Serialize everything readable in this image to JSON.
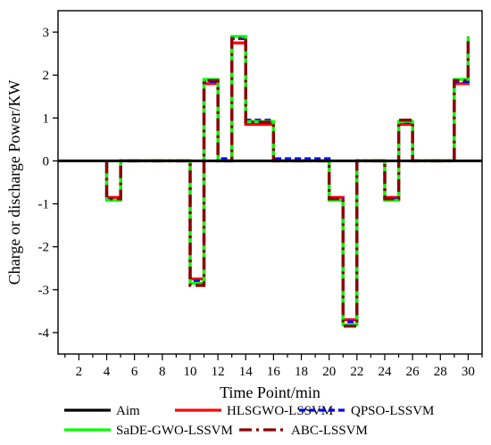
{
  "chart_data": {
    "type": "line",
    "xlabel": "Time Point/min",
    "ylabel": "Charge or discharge Power/KW",
    "xlim": [
      0.5,
      31
    ],
    "ylim": [
      -4.5,
      3.5
    ],
    "xticks": [
      2,
      4,
      6,
      8,
      10,
      12,
      14,
      16,
      18,
      20,
      22,
      24,
      26,
      28,
      30
    ],
    "yticks": [
      -4,
      -3,
      -2,
      -1,
      0,
      1,
      2,
      3
    ],
    "grid": false,
    "legend_position": "bottom",
    "series": [
      {
        "name": "Aim",
        "color": "#000000",
        "style": "solid",
        "x": [
          0.5,
          31
        ],
        "y": [
          0,
          0
        ]
      },
      {
        "name": "HLSGWO-LSSVM",
        "color": "#ff0000",
        "style": "solid",
        "x": [
          4,
          4,
          5,
          5,
          10,
          10,
          11,
          11,
          12,
          12,
          13,
          13,
          14,
          14,
          16,
          16,
          20,
          20,
          21,
          21,
          22,
          22,
          24,
          24,
          25,
          25,
          26,
          26,
          29,
          29,
          30,
          30
        ],
        "y": [
          0,
          -0.85,
          -0.85,
          0,
          0,
          -2.75,
          -2.75,
          1.8,
          1.8,
          0,
          0,
          2.75,
          2.75,
          0.85,
          0.85,
          0,
          0,
          -0.85,
          -0.85,
          -3.7,
          -3.7,
          0,
          0,
          -0.85,
          -0.85,
          0.85,
          0.85,
          0,
          0,
          1.8,
          1.8,
          2.75
        ]
      },
      {
        "name": "QPSO-LSSVM",
        "color": "#0000ff",
        "style": "dash",
        "x": [
          4,
          4,
          5,
          5,
          10,
          10,
          11,
          11,
          12,
          12,
          13,
          13,
          14,
          14,
          16,
          16,
          20,
          20,
          21,
          21,
          22,
          22,
          24,
          24,
          25,
          25,
          26,
          26,
          29,
          29,
          30,
          30
        ],
        "y": [
          0,
          -0.9,
          -0.9,
          0,
          0,
          -2.8,
          -2.8,
          1.85,
          1.85,
          0.05,
          0.05,
          2.85,
          2.85,
          0.95,
          0.95,
          0.05,
          0.05,
          -0.9,
          -0.9,
          -3.75,
          -3.75,
          0,
          0,
          -0.9,
          -0.9,
          0.9,
          0.9,
          0,
          0,
          1.85,
          1.85,
          2.85
        ]
      },
      {
        "name": "SaDE-GWO-LSSVM",
        "color": "#00ff00",
        "style": "solid",
        "x": [
          4,
          4,
          5,
          5,
          10,
          10,
          11,
          11,
          12,
          12,
          13,
          13,
          14,
          14,
          16,
          16,
          20,
          20,
          21,
          21,
          22,
          22,
          24,
          24,
          25,
          25,
          26,
          26,
          29,
          29,
          30,
          30
        ],
        "y": [
          0,
          -0.92,
          -0.92,
          0,
          0,
          -2.85,
          -2.85,
          1.9,
          1.9,
          0,
          0,
          2.9,
          2.9,
          0.92,
          0.92,
          0,
          0,
          -0.92,
          -0.92,
          -3.82,
          -3.82,
          0,
          0,
          -0.92,
          -0.92,
          0.92,
          0.92,
          0,
          0,
          1.9,
          1.9,
          2.9
        ]
      },
      {
        "name": "ABC-LSSVM",
        "color": "#8b0000",
        "style": "dashdot",
        "x": [
          4,
          4,
          5,
          5,
          10,
          10,
          11,
          11,
          12,
          12,
          13,
          13,
          14,
          14,
          16,
          16,
          20,
          20,
          21,
          21,
          22,
          22,
          24,
          24,
          25,
          25,
          26,
          26,
          29,
          29,
          30,
          30
        ],
        "y": [
          0,
          -0.88,
          -0.88,
          0,
          0,
          -2.9,
          -2.9,
          1.87,
          1.87,
          0,
          0,
          2.85,
          2.85,
          0.9,
          0.9,
          0,
          0,
          -0.88,
          -0.88,
          -3.85,
          -3.85,
          0,
          0,
          -0.88,
          -0.88,
          0.95,
          0.95,
          0,
          0,
          1.87,
          1.87,
          2.9
        ]
      }
    ]
  }
}
